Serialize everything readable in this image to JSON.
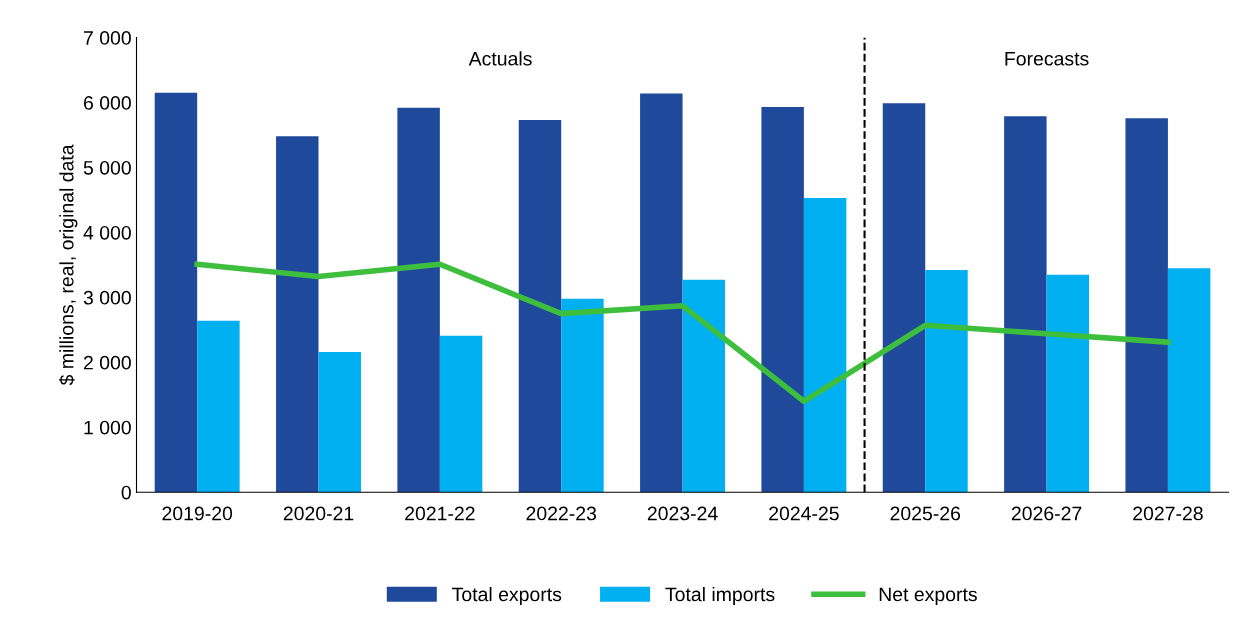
{
  "chart_data": {
    "type": "bar",
    "ylabel": "$ millions, real, original data",
    "categories": [
      "2019-20",
      "2020-21",
      "2021-22",
      "2022-23",
      "2023-24",
      "2024-25",
      "2025-26",
      "2026-27",
      "2027-28"
    ],
    "series": [
      {
        "name": "Total exports",
        "color": "#1f4a9c",
        "values": [
          6150,
          5480,
          5920,
          5730,
          6140,
          5930,
          5990,
          5790,
          5760
        ]
      },
      {
        "name": "Total imports",
        "color": "#00b0f0",
        "values": [
          2640,
          2160,
          2410,
          2980,
          3270,
          4530,
          3420,
          3350,
          3450
        ]
      },
      {
        "name": "Net exports",
        "type": "line",
        "color": "#3dbf3d",
        "values": [
          3510,
          3320,
          3510,
          2750,
          2870,
          1400,
          2570,
          2440,
          2310
        ]
      }
    ],
    "ylim": [
      0,
      7000
    ],
    "yticks": [
      0,
      {
        "value": 1000,
        "label": "1 000"
      },
      {
        "value": 2000,
        "label": "2 000"
      },
      {
        "value": 3000,
        "label": "3 000"
      },
      {
        "value": 4000,
        "label": "4 000"
      },
      {
        "value": 5000,
        "label": "5 000"
      },
      {
        "value": 6000,
        "label": "6 000"
      },
      {
        "value": 7000,
        "label": "7 000"
      }
    ],
    "annotations": [
      "Actuals",
      "Forecasts"
    ],
    "legend": "bottom",
    "grid": false,
    "marker": "none",
    "line_style": "solid"
  }
}
